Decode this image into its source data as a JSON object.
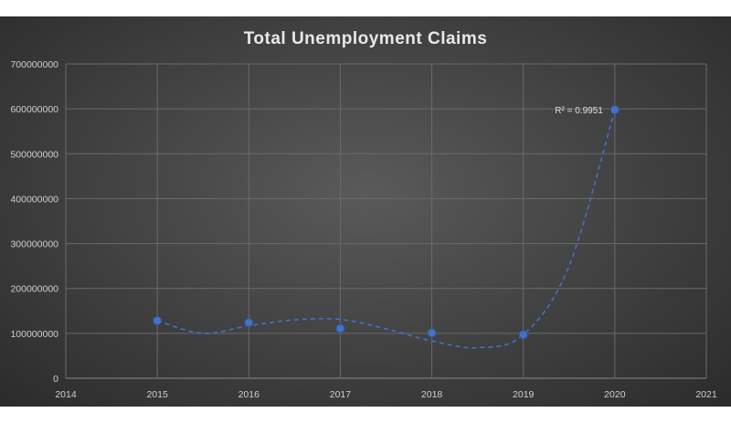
{
  "chart_data": {
    "type": "scatter",
    "title": "Total Unemployment Claims",
    "xlabel": "",
    "ylabel": "",
    "x": [
      2015,
      2016,
      2017,
      2018,
      2019,
      2020
    ],
    "y": [
      128000000,
      124000000,
      111000000,
      101000000,
      97000000,
      598000000
    ],
    "xlim": [
      2014,
      2021
    ],
    "ylim": [
      0,
      700000000
    ],
    "x_ticks": [
      "2014",
      "2015",
      "2016",
      "2017",
      "2018",
      "2019",
      "2020",
      "2021"
    ],
    "y_ticks": [
      "0",
      "100000000",
      "200000000",
      "300000000",
      "400000000",
      "500000000",
      "600000000",
      "700000000"
    ],
    "trendline": {
      "style": "dashed",
      "label": "R² = 0.9951",
      "path": [
        [
          2015,
          128000000
        ],
        [
          2015.5,
          100000000
        ],
        [
          2016,
          117000000
        ],
        [
          2016.5,
          130000000
        ],
        [
          2017,
          131000000
        ],
        [
          2017.5,
          110000000
        ],
        [
          2018,
          83000000
        ],
        [
          2018.5,
          68000000
        ],
        [
          2019,
          97000000
        ],
        [
          2019.5,
          250000000
        ],
        [
          2020,
          598000000
        ]
      ]
    },
    "grid": true,
    "colors": {
      "marker": "#4472c4",
      "trendline": "#4472c4",
      "grid": "#6a6a6a",
      "text": "#d0d0d0"
    }
  }
}
